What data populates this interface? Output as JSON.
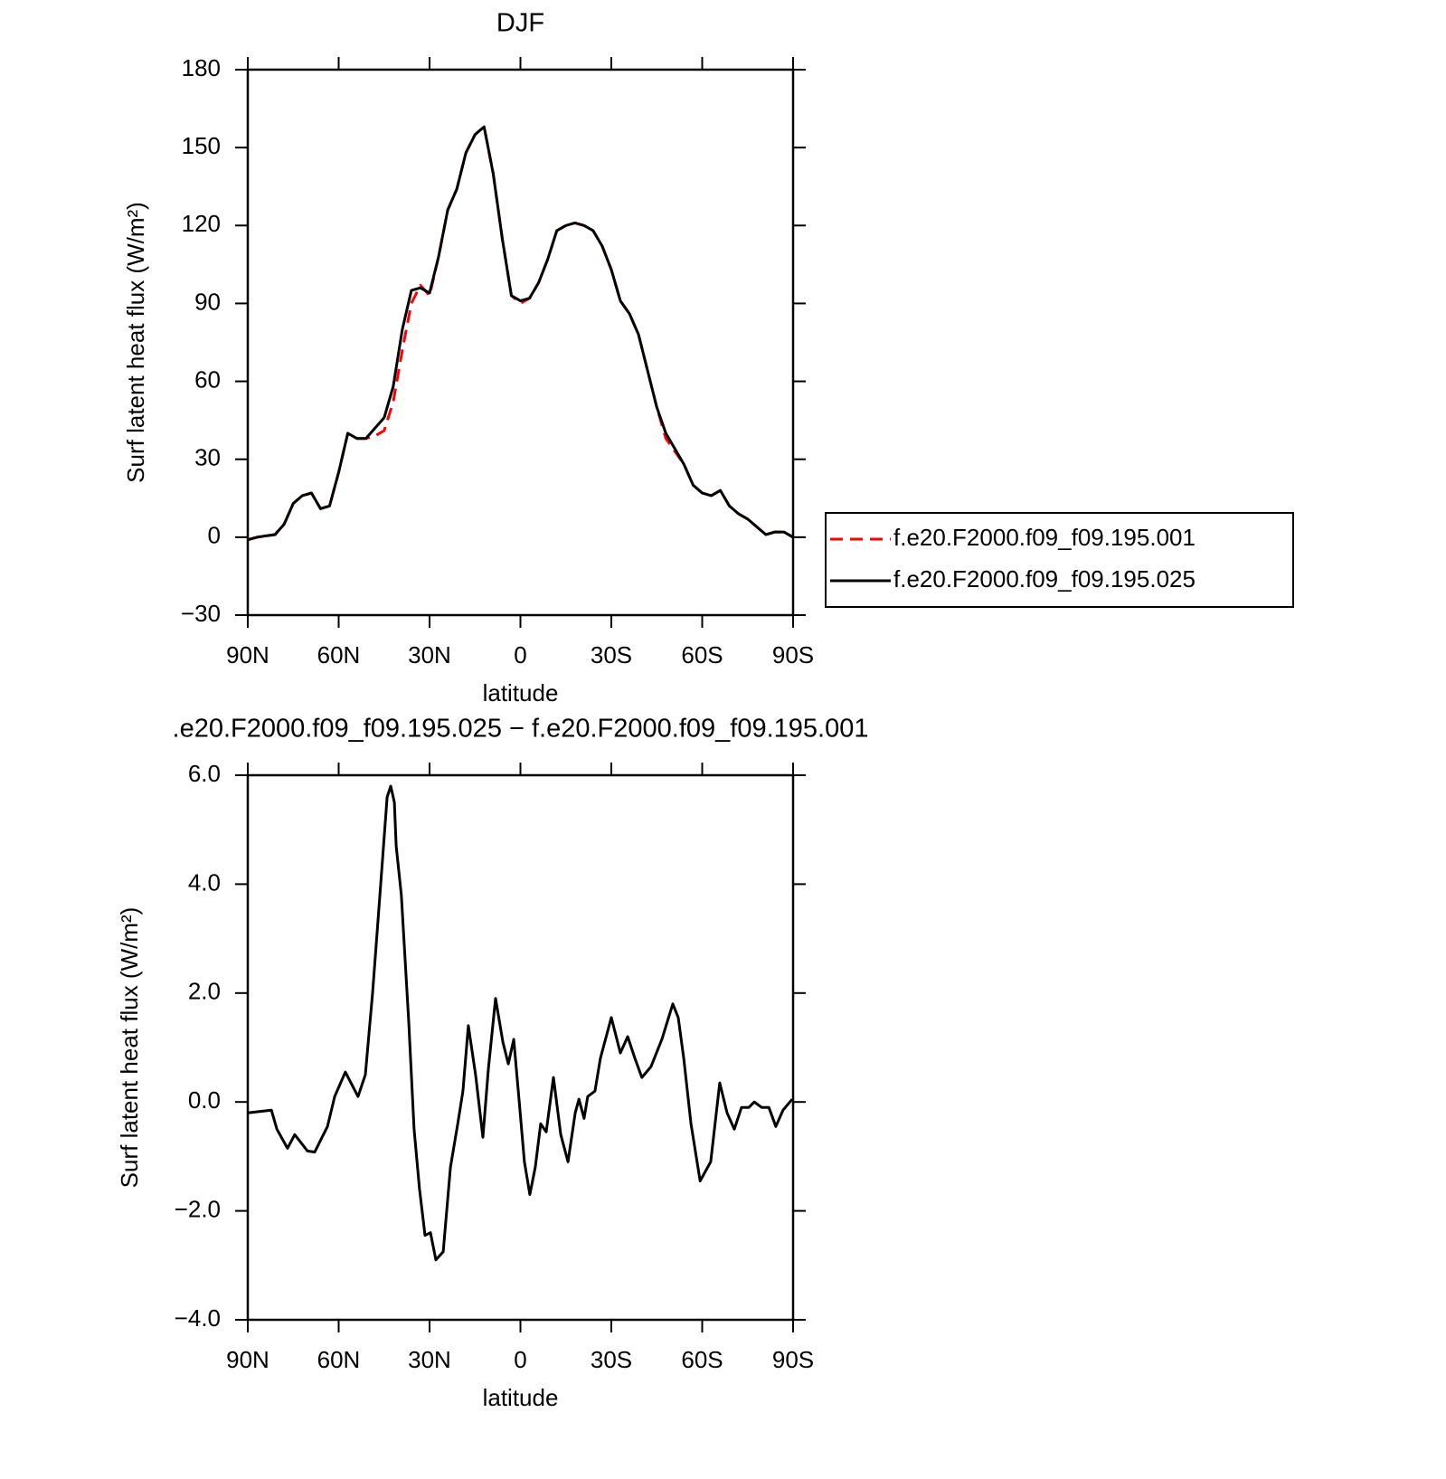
{
  "chart_data": [
    {
      "type": "line",
      "title": "DJF",
      "xlabel": "latitude",
      "ylabel": "Surf latent heat flux (W/m²)",
      "x": [
        90,
        87,
        84,
        81,
        78,
        75,
        72,
        69,
        66,
        63,
        60,
        57,
        54,
        51,
        48,
        45,
        42,
        39,
        36,
        33,
        30,
        27,
        24,
        21,
        18,
        15,
        12,
        9,
        6,
        3,
        0,
        -3,
        -6,
        -9,
        -12,
        -15,
        -18,
        -21,
        -24,
        -27,
        -30,
        -33,
        -36,
        -39,
        -42,
        -45,
        -48,
        -51,
        -54,
        -57,
        -60,
        -63,
        -66,
        -69,
        -72,
        -75,
        -78,
        -81,
        -84,
        -87,
        -90
      ],
      "series": [
        {
          "name": "f.e20.F2000.f09_f09.195.001",
          "color": "#ff0000",
          "style": "dashed",
          "values": [
            -1,
            0,
            0.5,
            1,
            5,
            13,
            16,
            17,
            11,
            12,
            25,
            40,
            38,
            38,
            39,
            41,
            52,
            72,
            90,
            97,
            93,
            108,
            126,
            134,
            148,
            155,
            158,
            140,
            115,
            93,
            90,
            92,
            98,
            107,
            118,
            120,
            121,
            120,
            118,
            112,
            103,
            91,
            86,
            78,
            64,
            50,
            38,
            33,
            28,
            20,
            17,
            16,
            18,
            12,
            9,
            7,
            4,
            1,
            2,
            2,
            0
          ]
        },
        {
          "name": "f.e20.F2000.f09_f09.195.025",
          "color": "#000000",
          "style": "solid",
          "values": [
            -1,
            0,
            0.5,
            1,
            5,
            13,
            16,
            17,
            11,
            12,
            25,
            40,
            38,
            38,
            42,
            46,
            58,
            80,
            95,
            96,
            94,
            108,
            126,
            134,
            148,
            155,
            158,
            140,
            115,
            93,
            91,
            92,
            98,
            107,
            118,
            120,
            121,
            120,
            118,
            112,
            103,
            91,
            86,
            78,
            64,
            50,
            40,
            34,
            28,
            20,
            17,
            16,
            18,
            12,
            9,
            7,
            4,
            1,
            2,
            2,
            0
          ]
        }
      ],
      "xlim": [
        90,
        -90
      ],
      "xticks": [
        {
          "value": 90,
          "label": "90N"
        },
        {
          "value": 60,
          "label": "60N"
        },
        {
          "value": 30,
          "label": "30N"
        },
        0,
        {
          "value": -30,
          "label": "30S"
        },
        {
          "value": -60,
          "label": "60S"
        },
        {
          "value": -90,
          "label": "90S"
        }
      ],
      "ylim": [
        -30,
        180
      ],
      "yticks": [
        {
          "value": -30,
          "label": "−30"
        },
        0,
        30,
        60,
        90,
        120,
        150,
        180
      ],
      "legend": "right"
    },
    {
      "type": "line",
      "title": ".e20.F2000.f09_f09.195.025 − f.e20.F2000.f09_f09.195.001",
      "xlabel": "latitude",
      "ylabel": "Surf latent heat flux (W/m²)",
      "x": [
        90,
        82.2,
        80.4,
        76.9,
        74.5,
        70.3,
        67.9,
        63.7,
        61.3,
        57.8,
        53.6,
        51.2,
        48.8,
        46.4,
        44.0,
        42.8,
        41.6,
        41.0,
        39.3,
        36.9,
        35.1,
        33.3,
        31.5,
        29.7,
        27.9,
        25.5,
        23.1,
        20.7,
        19.0,
        17.2,
        14.8,
        12.4,
        10.6,
        8.2,
        5.8,
        4.0,
        2.2,
        0.4,
        -1.3,
        -3.1,
        -4.9,
        -6.7,
        -8.5,
        -10.9,
        -13.3,
        -15.7,
        -18.1,
        -19.3,
        -21.0,
        -22.2,
        -24.6,
        -26.4,
        -30.0,
        -33.0,
        -35.4,
        -37.8,
        -40.1,
        -43.1,
        -46.7,
        -50.3,
        -52.1,
        -53.9,
        -56.3,
        -59.3,
        -62.8,
        -65.8,
        -68.2,
        -70.6,
        -73.0,
        -75.4,
        -77.2,
        -79.6,
        -82.0,
        -84.3,
        -86.7,
        -89.7
      ],
      "series": [
        {
          "name": "diff",
          "color": "#000000",
          "style": "solid",
          "values": [
            -0.2,
            -0.15,
            -0.5,
            -0.85,
            -0.6,
            -0.9,
            -0.92,
            -0.45,
            0.1,
            0.55,
            0.1,
            0.5,
            2.0,
            3.8,
            5.6,
            5.8,
            5.5,
            4.7,
            3.8,
            1.5,
            -0.5,
            -1.6,
            -2.45,
            -2.4,
            -2.9,
            -2.75,
            -1.2,
            -0.4,
            0.2,
            1.4,
            0.5,
            -0.65,
            0.6,
            1.9,
            1.1,
            0.7,
            1.15,
            0,
            -1.1,
            -1.7,
            -1.2,
            -0.4,
            -0.55,
            0.45,
            -0.6,
            -1.1,
            -0.2,
            0.05,
            -0.3,
            0.1,
            0.2,
            0.8,
            1.55,
            0.9,
            1.2,
            0.8,
            0.45,
            0.65,
            1.15,
            1.8,
            1.55,
            0.8,
            -0.4,
            -1.45,
            -1.1,
            0.35,
            -0.2,
            -0.5,
            -0.1,
            -0.1,
            0.0,
            -0.1,
            -0.1,
            -0.45,
            -0.15,
            0.05
          ]
        }
      ],
      "xlim": [
        90,
        -90
      ],
      "xticks": [
        {
          "value": 90,
          "label": "90N"
        },
        {
          "value": 60,
          "label": "60N"
        },
        {
          "value": 30,
          "label": "30N"
        },
        0,
        {
          "value": -30,
          "label": "30S"
        },
        {
          "value": -60,
          "label": "60S"
        },
        {
          "value": -90,
          "label": "90S"
        }
      ],
      "ylim": [
        -4,
        6
      ],
      "yticks": [
        {
          "value": -4,
          "label": "−4.0"
        },
        {
          "value": -2,
          "label": "−2.0"
        },
        {
          "value": 0,
          "label": "0.0"
        },
        {
          "value": 2,
          "label": "2.0"
        },
        {
          "value": 4,
          "label": "4.0"
        },
        {
          "value": 6,
          "label": "6.0"
        }
      ]
    }
  ]
}
